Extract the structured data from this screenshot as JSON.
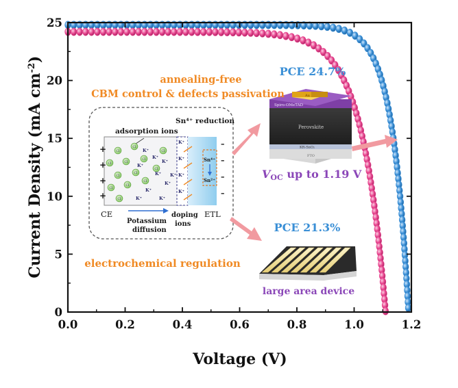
{
  "chart_data": {
    "type": "scatter",
    "title": "",
    "xlabel": "Voltage (V)",
    "ylabel_main": "Current Density (mA cm",
    "ylabel_sup": "-2",
    "ylabel_close": ")",
    "xlim": [
      0,
      1.2
    ],
    "ylim": [
      0,
      25
    ],
    "xticks": [
      0.0,
      0.2,
      0.4,
      0.6,
      0.8,
      1.0,
      1.2
    ],
    "xtick_labels": [
      "0.0",
      "0.2",
      "0.4",
      "0.6",
      "0.8",
      "1.0",
      "1.2"
    ],
    "yticks": [
      0,
      5,
      10,
      15,
      20,
      25
    ],
    "ytick_labels": [
      "0",
      "5",
      "10",
      "15",
      "20",
      "25"
    ],
    "grid": false,
    "series": [
      {
        "color": "#3a8fd6",
        "voc": 1.19,
        "jsc": 24.8,
        "n": 2.2
      },
      {
        "color": "#e8458f",
        "voc": 1.11,
        "jsc": 24.2,
        "n": 3.2
      }
    ]
  },
  "annotations": {
    "annealing_free": "annealing-free",
    "cbm_control": "CBM control & defects passivation",
    "electrochemical": "electrochemical regulation",
    "pce_top": "PCE 24.7%",
    "pce_bottom": "PCE 21.3%",
    "voc_v": "V",
    "voc_sub": "OC",
    "voc_rest": " up to 1.19 V",
    "large_area": "large area device"
  },
  "mechanism": {
    "adsorption_ions": "adsorption ions",
    "sn_reduction": "Sn⁴⁺ reduction",
    "ce": "CE",
    "etl": "ETL",
    "potassium_1": "Potassium",
    "potassium_2": "diffusion",
    "doping_1": "doping",
    "doping_2": "ions",
    "plus": "+",
    "minus": "–",
    "cl": "Cl",
    "k": "K⁺",
    "sn4": "Sn⁴⁺",
    "sn2": "Sn²⁺"
  },
  "device": {
    "electrode": "Au",
    "htl": "Spiro-OMeTAD",
    "absorber": "Perovskite",
    "etl": "KR-SnO₂",
    "substrate": "FTO"
  },
  "colors": {
    "blue": "#3a8fd6",
    "pink": "#e8458f",
    "orange": "#f08a24",
    "purple": "#8b47b8",
    "arrow": "#f19aa0"
  }
}
